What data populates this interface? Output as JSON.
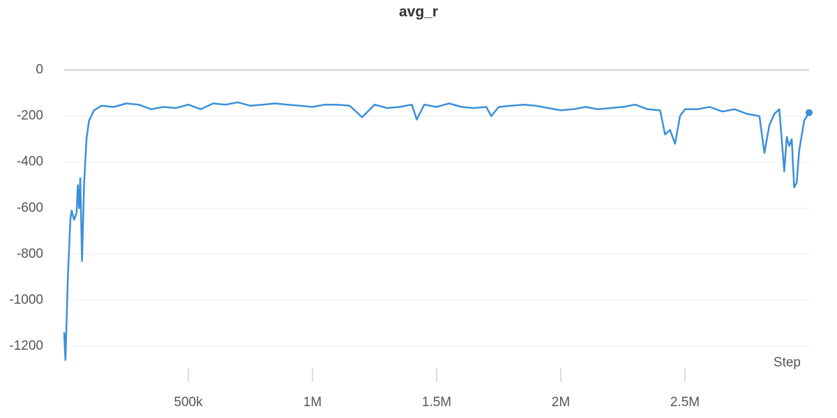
{
  "chart_data": {
    "type": "line",
    "title": "avg_r",
    "xlabel": "Step",
    "x": [
      0,
      5000,
      15000,
      25000,
      30000,
      40000,
      50000,
      55000,
      60000,
      65000,
      72000,
      80000,
      90000,
      100000,
      120000,
      150000,
      200000,
      250000,
      300000,
      350000,
      400000,
      450000,
      500000,
      550000,
      600000,
      650000,
      700000,
      750000,
      800000,
      850000,
      900000,
      950000,
      1000000,
      1050000,
      1100000,
      1150000,
      1200000,
      1250000,
      1300000,
      1350000,
      1400000,
      1420000,
      1450000,
      1500000,
      1550000,
      1600000,
      1650000,
      1700000,
      1720000,
      1750000,
      1800000,
      1850000,
      1900000,
      1950000,
      2000000,
      2050000,
      2100000,
      2150000,
      2200000,
      2250000,
      2300000,
      2350000,
      2400000,
      2420000,
      2440000,
      2460000,
      2480000,
      2500000,
      2550000,
      2600000,
      2650000,
      2700000,
      2750000,
      2800000,
      2820000,
      2840000,
      2860000,
      2880000,
      2900000,
      2910000,
      2920000,
      2930000,
      2940000,
      2950000,
      2960000,
      2980000,
      3000000
    ],
    "values": [
      -1140,
      -1260,
      -900,
      -650,
      -610,
      -650,
      -620,
      -500,
      -600,
      -470,
      -830,
      -500,
      -300,
      -220,
      -175,
      -155,
      -160,
      -145,
      -150,
      -170,
      -160,
      -165,
      -150,
      -170,
      -145,
      -150,
      -140,
      -155,
      -150,
      -145,
      -150,
      -155,
      -160,
      -150,
      -150,
      -155,
      -205,
      -150,
      -165,
      -160,
      -150,
      -215,
      -150,
      -160,
      -145,
      -160,
      -165,
      -160,
      -200,
      -160,
      -155,
      -150,
      -155,
      -165,
      -175,
      -170,
      -160,
      -170,
      -165,
      -160,
      -150,
      -170,
      -175,
      -280,
      -260,
      -320,
      -200,
      -170,
      -170,
      -160,
      -180,
      -170,
      -190,
      -200,
      -360,
      -240,
      -190,
      -170,
      -440,
      -290,
      -330,
      -300,
      -510,
      -490,
      -350,
      -220,
      -185
    ],
    "color": "#3a8fd9",
    "xlim": [
      0,
      3000000
    ],
    "xticks": [
      {
        "value": 500000,
        "label": "500k"
      },
      {
        "value": 1000000,
        "label": "1M"
      },
      {
        "value": 1500000,
        "label": "1.5M"
      },
      {
        "value": 2000000,
        "label": "2M"
      },
      {
        "value": 2500000,
        "label": "2.5M"
      }
    ],
    "ylim": [
      -1270,
      120
    ],
    "yticks": [
      -1200,
      -1000,
      -800,
      -600,
      -400,
      -200,
      0
    ],
    "grid": true
  }
}
